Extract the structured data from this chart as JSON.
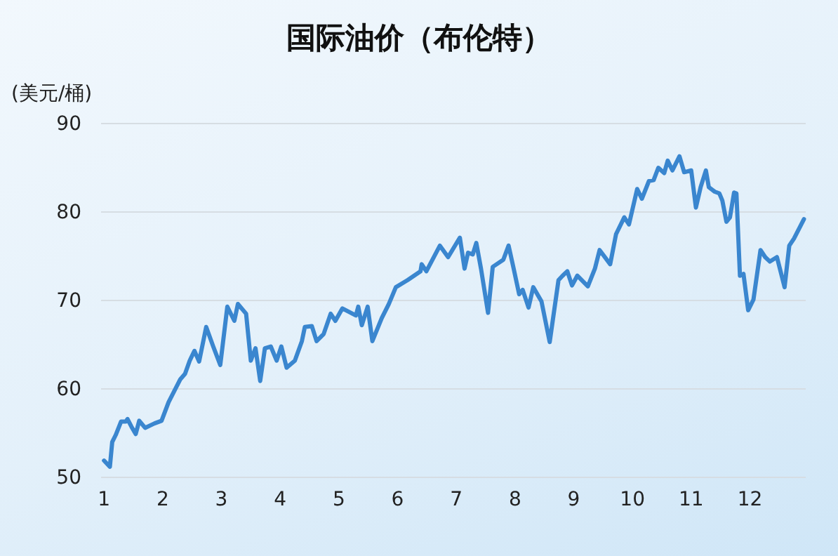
{
  "chart_data": {
    "type": "line",
    "title": "国际油价（布伦特）",
    "ylabel": "(美元/桶)",
    "x": [
      1.0,
      1.1,
      1.14,
      1.2,
      1.29,
      1.37,
      1.4,
      1.47,
      1.54,
      1.6,
      1.7,
      1.86,
      1.98,
      2.1,
      2.3,
      2.38,
      2.46,
      2.54,
      2.62,
      2.74,
      2.86,
      2.98,
      3.1,
      3.22,
      3.28,
      3.42,
      3.5,
      3.58,
      3.66,
      3.74,
      3.84,
      3.94,
      4.02,
      4.11,
      4.25,
      4.37,
      4.42,
      4.54,
      4.62,
      4.74,
      4.86,
      4.94,
      5.06,
      5.29,
      5.33,
      5.39,
      5.49,
      5.57,
      5.73,
      5.85,
      5.97,
      6.17,
      6.39,
      6.41,
      6.49,
      6.72,
      6.86,
      7.06,
      7.14,
      7.2,
      7.28,
      7.34,
      7.42,
      7.54,
      7.62,
      7.8,
      7.89,
      7.97,
      8.07,
      8.13,
      8.23,
      8.31,
      8.45,
      8.59,
      8.74,
      8.81,
      8.89,
      8.97,
      9.06,
      9.24,
      9.36,
      9.44,
      9.62,
      9.72,
      9.86,
      9.94,
      10.08,
      10.16,
      10.28,
      10.36,
      10.44,
      10.54,
      10.6,
      10.68,
      10.8,
      10.88,
      11.0,
      11.08,
      11.16,
      11.25,
      11.3,
      11.4,
      11.48,
      11.53,
      11.6,
      11.66,
      11.73,
      11.77,
      11.83,
      11.89,
      11.97,
      12.06,
      12.18,
      12.26,
      12.34,
      12.46,
      12.59,
      12.67,
      12.75,
      12.92
    ],
    "series": [
      {
        "color": "#3a86cf",
        "values": [
          51.9,
          51.2,
          54,
          54.8,
          56.3,
          56.3,
          56.6,
          55.7,
          54.9,
          56.4,
          55.6,
          56.1,
          56.4,
          58.5,
          61.1,
          61.7,
          63.2,
          64.3,
          63.1,
          67,
          64.8,
          62.7,
          69.3,
          67.7,
          69.6,
          68.5,
          63.2,
          64.6,
          60.9,
          64.6,
          64.8,
          63.2,
          64.8,
          62.4,
          63.2,
          65.4,
          67,
          67.1,
          65.4,
          66.2,
          68.5,
          67.7,
          69.1,
          68.3,
          69.3,
          67.2,
          69.3,
          65.4,
          68,
          69.6,
          71.5,
          72.3,
          73.3,
          74.1,
          73.3,
          76.2,
          74.9,
          77.1,
          73.6,
          75.4,
          75.2,
          76.5,
          73.6,
          68.6,
          73.8,
          74.6,
          76.2,
          73.8,
          70.7,
          71.2,
          69.2,
          71.5,
          69.9,
          65.3,
          72.3,
          72.8,
          73.3,
          71.7,
          72.8,
          71.6,
          73.6,
          75.7,
          74.1,
          77.5,
          79.4,
          78.6,
          82.6,
          81.5,
          83.5,
          83.6,
          85,
          84.4,
          85.8,
          84.7,
          86.3,
          84.5,
          84.7,
          80.5,
          82.8,
          84.7,
          82.8,
          82.3,
          82.1,
          81.3,
          78.9,
          79.4,
          82.2,
          82.1,
          72.8,
          73,
          68.9,
          70.1,
          75.7,
          74.9,
          74.4,
          74.9,
          71.5,
          76.2,
          77,
          79.2
        ]
      }
    ],
    "xlim": [
      0.95,
      12.95
    ],
    "xticks": [
      1,
      2,
      3,
      4,
      5,
      6,
      7,
      8,
      9,
      10,
      11,
      12
    ],
    "ylim": [
      50,
      90
    ],
    "yticks": [
      50,
      60,
      70,
      80,
      90
    ],
    "grid": "y",
    "marker": "none",
    "line_style": "solid"
  }
}
